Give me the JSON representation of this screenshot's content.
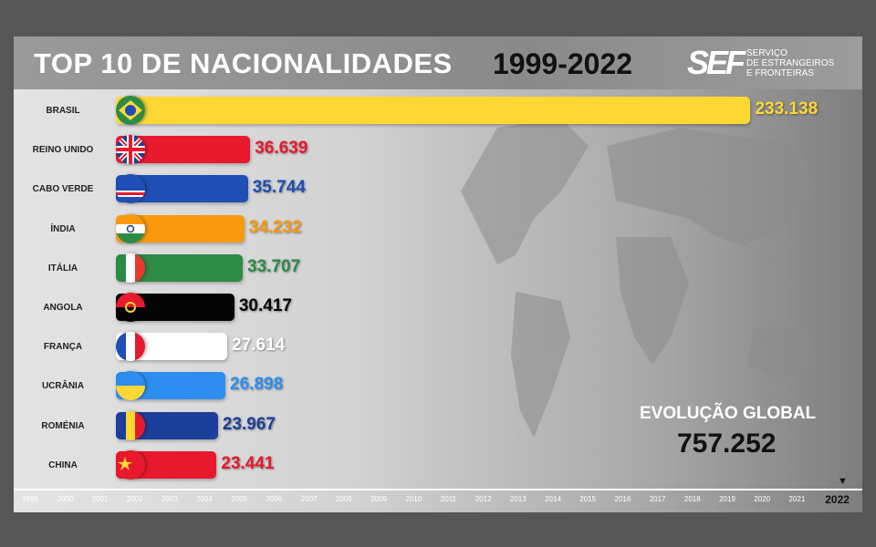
{
  "header": {
    "title": "TOP 10 DE NACIONALIDADES",
    "years": "1999-2022",
    "logo_mark": "SEF",
    "logo_lines": [
      "SERVIÇO",
      "DE ESTRANGEIROS",
      "E FRONTEIRAS"
    ]
  },
  "global": {
    "label": "EVOLUÇÃO GLOBAL",
    "value": "757.252"
  },
  "chart_data": {
    "type": "bar",
    "title": "TOP 10 DE NACIONALIDADES 1999-2022",
    "current_year": "2022",
    "categories": [
      "BRASIL",
      "REINO UNIDO",
      "CABO VERDE",
      "ÍNDIA",
      "ITÁLIA",
      "ANGOLA",
      "FRANÇA",
      "UCRÂNIA",
      "ROMÉNIA",
      "CHINA"
    ],
    "values": [
      233138,
      36639,
      35744,
      34232,
      33707,
      30417,
      27614,
      26898,
      23967,
      23441
    ],
    "value_labels": [
      "233.138",
      "36.639",
      "35.744",
      "34.232",
      "33.707",
      "30.417",
      "27.614",
      "26.898",
      "23.967",
      "23.441"
    ],
    "bar_colors": [
      "#fdd835",
      "#e8192c",
      "#1f4fb5",
      "#f99a0e",
      "#2e8b45",
      "#050505",
      "#ffffff",
      "#2d8ef0",
      "#1c3f9b",
      "#e8192c"
    ],
    "label_colors": [
      "#fdd835",
      "#e8192c",
      "#1f4fb5",
      "#f99a0e",
      "#2e8b45",
      "#050505",
      "#ffffff",
      "#2d8ef0",
      "#1c3f9b",
      "#e8192c"
    ],
    "flags": [
      "brazil",
      "uk",
      "cape-verde",
      "india",
      "italy",
      "angola",
      "france",
      "ukraine",
      "romania",
      "china"
    ],
    "timeline": [
      "1999",
      "2000",
      "2001",
      "2002",
      "2003",
      "2004",
      "2005",
      "2006",
      "2007",
      "2008",
      "2009",
      "2010",
      "2011",
      "2012",
      "2013",
      "2014",
      "2015",
      "2016",
      "2017",
      "2018",
      "2019",
      "2020",
      "2021",
      "2022"
    ]
  }
}
